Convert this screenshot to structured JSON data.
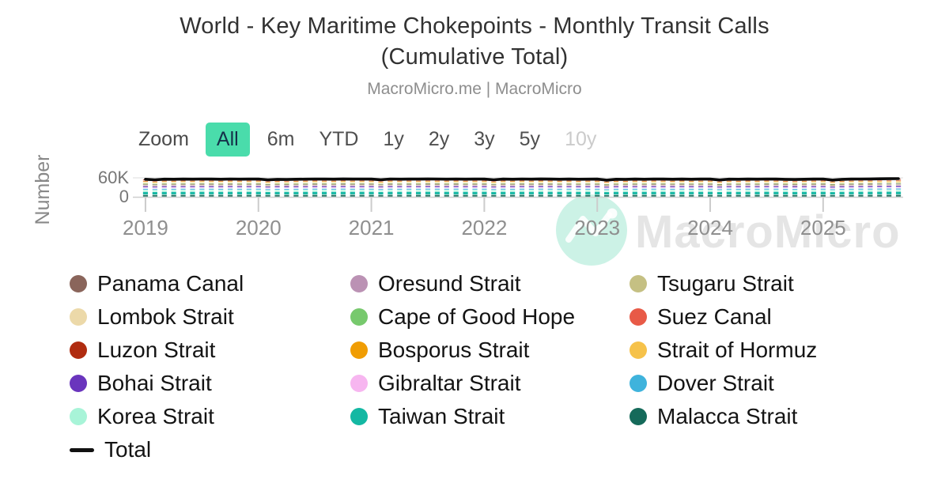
{
  "header": {
    "title_line1": "World - Key Maritime Chokepoints - Monthly Transit Calls",
    "title_line2": "(Cumulative Total)",
    "subtitle": "MacroMicro.me | MacroMicro"
  },
  "toolbar": {
    "zoom_label": "Zoom",
    "buttons": [
      {
        "label": "All",
        "state": "selected"
      },
      {
        "label": "6m",
        "state": "normal"
      },
      {
        "label": "YTD",
        "state": "normal"
      },
      {
        "label": "1y",
        "state": "normal"
      },
      {
        "label": "2y",
        "state": "normal"
      },
      {
        "label": "3y",
        "state": "normal"
      },
      {
        "label": "5y",
        "state": "normal"
      },
      {
        "label": "10y",
        "state": "disabled"
      }
    ],
    "selected_color": "#4adcab"
  },
  "watermark": {
    "text": "MacroMicro",
    "logo": "macromicro-logo",
    "circle_color": "#48d1a5"
  },
  "chart_data": {
    "type": "bar",
    "stacked": true,
    "title": "World - Key Maritime Chokepoints - Monthly Transit Calls (Cumulative Total)",
    "subtitle": "MacroMicro.me | MacroMicro",
    "ylabel": "Number",
    "xlabel": "",
    "ylim": [
      0,
      66000
    ],
    "yticks": [
      {
        "value": 0,
        "label": "0"
      },
      {
        "value": 60000,
        "label": "60K"
      }
    ],
    "x_monthly_from": "2019-01",
    "x_monthly_to": "2025-09",
    "x_tick_labels": [
      "2019",
      "2020",
      "2021",
      "2022",
      "2023",
      "2024",
      "2025"
    ],
    "grid": "horizontal-only",
    "legend_position": "bottom",
    "series": [
      {
        "name": "Malacca Strait",
        "color": "#156a5a",
        "monthly_value": 6500
      },
      {
        "name": "Taiwan Strait",
        "color": "#14b8a3",
        "monthly_value": 9500
      },
      {
        "name": "Korea Strait",
        "color": "#a8f4d8",
        "monthly_value": 4800
      },
      {
        "name": "Dover Strait",
        "color": "#3fb3dc",
        "monthly_value": 4500
      },
      {
        "name": "Gibraltar Strait",
        "color": "#f7b6f0",
        "monthly_value": 3200
      },
      {
        "name": "Bohai Strait",
        "color": "#6a35bd",
        "monthly_value": 5200
      },
      {
        "name": "Lombok Strait",
        "color": "#ecd9a9",
        "monthly_value": 1400
      },
      {
        "name": "Oresund Strait",
        "color": "#bb92b4",
        "monthly_value": 2600
      },
      {
        "name": "Tsugaru Strait",
        "color": "#c5c083",
        "monthly_value": 1100
      },
      {
        "name": "Panama Canal",
        "color": "#8a655b",
        "monthly_value": 1000
      },
      {
        "name": "Cape of Good Hope",
        "color": "#77c96d",
        "monthly_value": 1400
      },
      {
        "name": "Strait of Hormuz",
        "color": "#f6c24a",
        "monthly_value": 3400
      },
      {
        "name": "Bosporus Strait",
        "color": "#f09d04",
        "monthly_value": 3300
      },
      {
        "name": "Suez Canal",
        "color": "#e85a47",
        "monthly_value": 1600
      },
      {
        "name": "Luzon Strait",
        "color": "#b02c10",
        "monthly_value": 3800
      }
    ],
    "total": {
      "name": "Total",
      "color": "#000000",
      "values": [
        55500,
        53800,
        55800,
        55600,
        56000,
        55700,
        56200,
        56000,
        55600,
        56200,
        55800,
        56000,
        56200,
        53500,
        55200,
        54800,
        55500,
        55800,
        56300,
        56000,
        55700,
        56400,
        55900,
        56100,
        56000,
        53900,
        56200,
        55800,
        56100,
        55900,
        56500,
        56200,
        55800,
        56300,
        55700,
        56000,
        56100,
        53700,
        56000,
        55600,
        56200,
        55800,
        56400,
        56100,
        55600,
        56000,
        55500,
        55800,
        55900,
        52800,
        55600,
        55300,
        55900,
        55600,
        56200,
        56000,
        55500,
        56100,
        55600,
        55900,
        56000,
        53200,
        55800,
        55400,
        56000,
        55700,
        56300,
        56100,
        55200,
        54800,
        55600,
        56000,
        56200,
        53000,
        55200,
        55900,
        56300,
        56500,
        57000,
        57200,
        57400
      ]
    }
  },
  "legend": {
    "columns": [
      [
        {
          "label": "Panama Canal",
          "color": "#8a655b",
          "type": "circle"
        },
        {
          "label": "Lombok Strait",
          "color": "#ecd9a9",
          "type": "circle"
        },
        {
          "label": "Luzon Strait",
          "color": "#b02c10",
          "type": "circle"
        },
        {
          "label": "Bohai Strait",
          "color": "#6a35bd",
          "type": "circle"
        },
        {
          "label": "Korea Strait",
          "color": "#a8f4d8",
          "type": "circle"
        },
        {
          "label": "Total",
          "color": "#111111",
          "type": "line"
        }
      ],
      [
        {
          "label": "Oresund Strait",
          "color": "#bb92b4",
          "type": "circle"
        },
        {
          "label": "Cape of Good Hope",
          "color": "#77c96d",
          "type": "circle"
        },
        {
          "label": "Bosporus Strait",
          "color": "#f09d04",
          "type": "circle"
        },
        {
          "label": "Gibraltar Strait",
          "color": "#f7b6f0",
          "type": "circle"
        },
        {
          "label": "Taiwan Strait",
          "color": "#14b8a3",
          "type": "circle"
        }
      ],
      [
        {
          "label": "Tsugaru Strait",
          "color": "#c5c083",
          "type": "circle"
        },
        {
          "label": "Suez Canal",
          "color": "#e85a47",
          "type": "circle"
        },
        {
          "label": "Strait of Hormuz",
          "color": "#f6c24a",
          "type": "circle"
        },
        {
          "label": "Dover Strait",
          "color": "#3fb3dc",
          "type": "circle"
        },
        {
          "label": "Malacca Strait",
          "color": "#156a5a",
          "type": "circle"
        }
      ]
    ]
  }
}
